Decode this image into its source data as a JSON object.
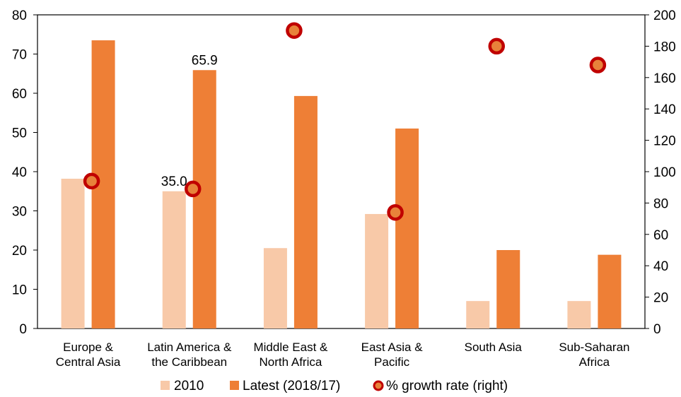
{
  "chart_data": {
    "type": "bar",
    "categories": [
      [
        "Europe &",
        "Central Asia"
      ],
      [
        "Latin America &",
        "the Caribbean"
      ],
      [
        "Middle East &",
        "North Africa"
      ],
      [
        "East Asia &",
        "Pacific"
      ],
      [
        "South Asia"
      ],
      [
        "Sub-Saharan",
        "Africa"
      ]
    ],
    "series": [
      {
        "name": "2010",
        "type": "bar",
        "axis": "left",
        "color": "#F8C9A8",
        "values": [
          38.2,
          35.0,
          20.5,
          29.2,
          7.0,
          7.0
        ]
      },
      {
        "name": "Latest (2018/17)",
        "type": "bar",
        "axis": "left",
        "color": "#EE7F36",
        "values": [
          73.5,
          65.9,
          59.3,
          51.0,
          20.0,
          18.8
        ]
      },
      {
        "name": "% growth rate (right)",
        "type": "scatter",
        "axis": "right",
        "color": "#E8823A",
        "edge_color": "#C00000",
        "values": [
          94,
          89,
          190,
          74,
          180,
          168
        ]
      }
    ],
    "data_labels": [
      {
        "series": 0,
        "index": 1,
        "text": "35.0"
      },
      {
        "series": 1,
        "index": 1,
        "text": "65.9"
      }
    ],
    "left_axis": {
      "min": 0,
      "max": 80,
      "step": 10,
      "ticks": [
        "0",
        "10",
        "20",
        "30",
        "40",
        "50",
        "60",
        "70",
        "80"
      ]
    },
    "right_axis": {
      "min": 0,
      "max": 200,
      "step": 20,
      "ticks": [
        "0",
        "20",
        "40",
        "60",
        "80",
        "100",
        "120",
        "140",
        "160",
        "180",
        "200"
      ]
    },
    "title": "",
    "xlabel": "",
    "ylabel": "",
    "grid": false,
    "legend_position": "bottom"
  }
}
